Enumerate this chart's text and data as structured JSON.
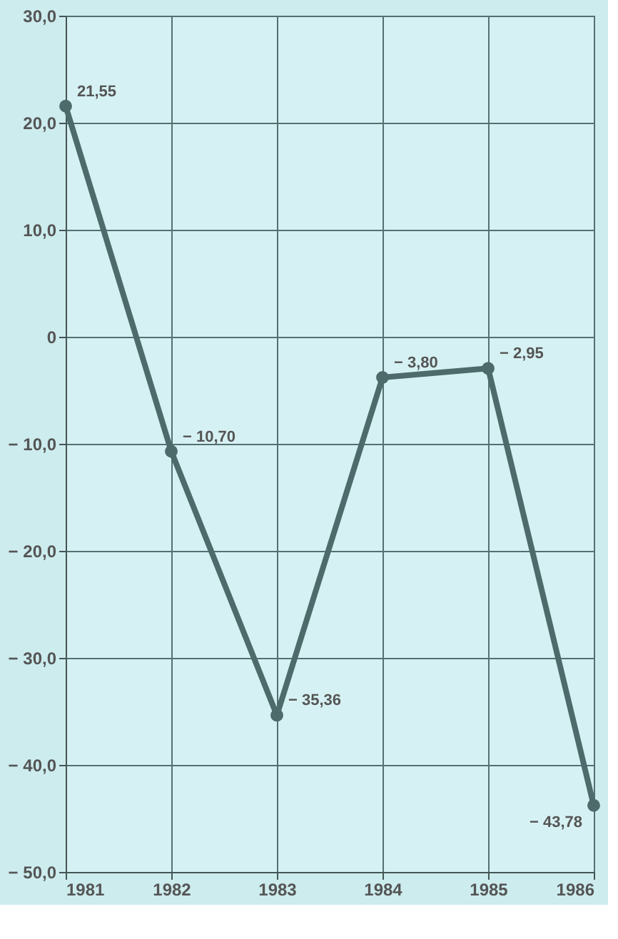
{
  "chart_data": {
    "type": "line",
    "x": [
      1981,
      1982,
      1983,
      1984,
      1985,
      1986
    ],
    "series": [
      {
        "color": "#4d6b6b",
        "values": [
          21.55,
          -10.7,
          -35.36,
          -3.8,
          -2.95,
          -43.78
        ],
        "value_labels": [
          "21,55",
          "− 10,70",
          "− 35,36",
          "− 3,80",
          "− 2,95",
          "− 43,78"
        ]
      }
    ],
    "xlim": [
      1981,
      1986
    ],
    "xticks": [
      1981,
      1982,
      1983,
      1984,
      1985,
      1986
    ],
    "ylim": [
      -50,
      30
    ],
    "yticks": [
      {
        "value": 30,
        "label": "30,0"
      },
      {
        "value": 20,
        "label": "20,0"
      },
      {
        "value": 10,
        "label": "10,0"
      },
      {
        "value": 0,
        "label": "0"
      },
      {
        "value": -10,
        "label": "− 10,0"
      },
      {
        "value": -20,
        "label": "− 20,0"
      },
      {
        "value": -30,
        "label": "− 30,0"
      },
      {
        "value": -40,
        "label": "− 40,0"
      },
      {
        "value": -50,
        "label": "− 50,0"
      }
    ],
    "grid": true,
    "marker": "circle",
    "line_style": "solid"
  }
}
